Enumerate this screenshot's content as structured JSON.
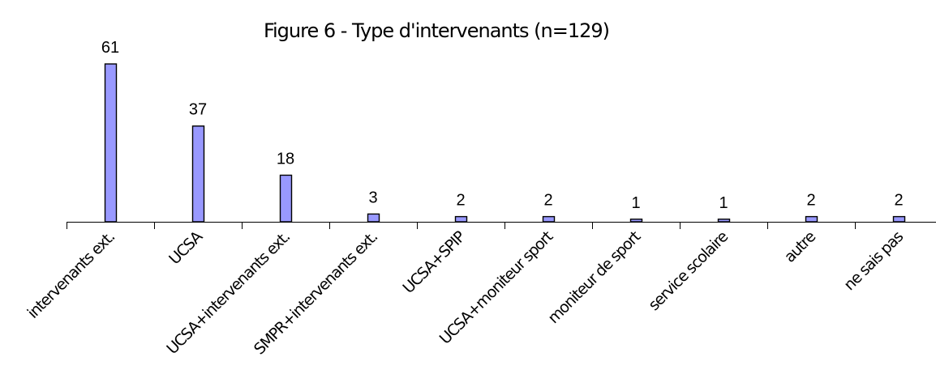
{
  "chart_data": {
    "type": "bar",
    "title": "Figure 6 - Type d'intervenants (n=129)",
    "xlabel": "",
    "ylabel": "",
    "categories": [
      "intervenants ext.",
      "UCSA",
      "UCSA+intervenants ext.",
      "SMPR+intervenants ext.",
      "UCSA+SPIP",
      "UCSA+moniteur sport",
      "moniteur de sport",
      "service scolaire",
      "autre",
      "ne sais pas"
    ],
    "values": [
      61,
      37,
      18,
      3,
      2,
      2,
      1,
      1,
      2,
      2
    ],
    "ylim": [
      0,
      61
    ],
    "grid": false,
    "legend": "none",
    "bar_color": "#9999ff",
    "bar_edge_color": "#000000"
  }
}
